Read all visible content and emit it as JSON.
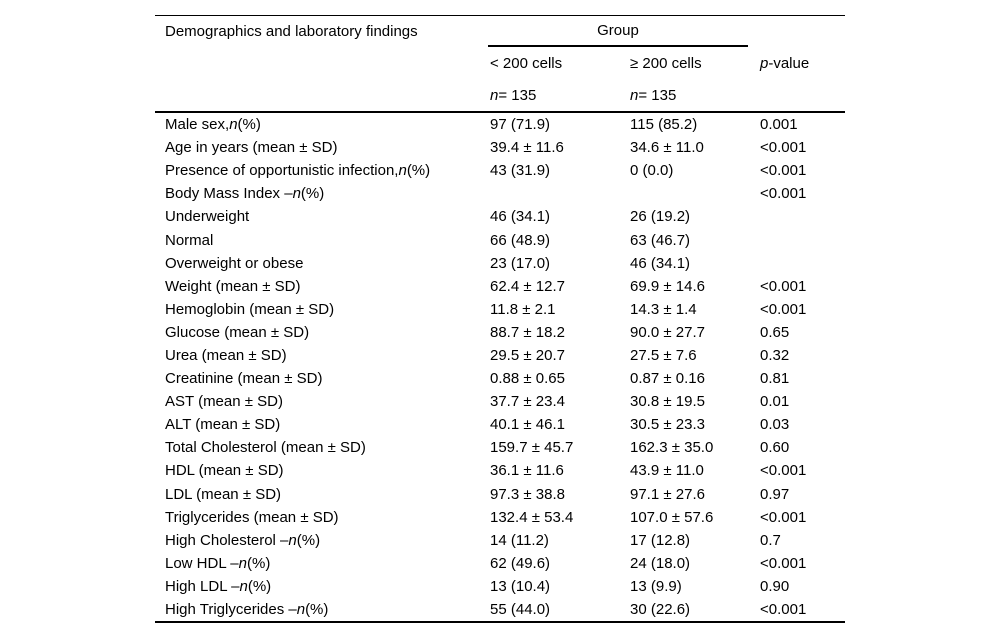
{
  "table": {
    "title_column": "Demographics and laboratory findings",
    "group_header": "Group",
    "columns": {
      "group1": {
        "label": "< 200 cells",
        "n": "*n* = 135"
      },
      "group2": {
        "label": "≥ 200 cells",
        "n": "*n* = 135"
      },
      "pvalue": {
        "label": "*p*-value"
      }
    },
    "rows": [
      {
        "label": "Male sex, *n* (%)",
        "group1": "97 (71.9)",
        "group2": "115 (85.2)",
        "p": "0.001"
      },
      {
        "label": "Age in years (mean ± SD)",
        "group1": "39.4 ± 11.6",
        "group2": "34.6 ± 11.0",
        "p": "<0.001"
      },
      {
        "label": "Presence of opportunistic infection, *n* (%)",
        "group1": "43 (31.9)",
        "group2": "0 (0.0)",
        "p": "<0.001"
      },
      {
        "label": "Body Mass Index – *n* (%)",
        "group1": "",
        "group2": "",
        "p": "<0.001"
      },
      {
        "label": "Underweight",
        "group1": "46 (34.1)",
        "group2": "26 (19.2)",
        "p": ""
      },
      {
        "label": "Normal",
        "group1": "66 (48.9)",
        "group2": "63 (46.7)",
        "p": ""
      },
      {
        "label": "Overweight or obese",
        "group1": "23 (17.0)",
        "group2": "46 (34.1)",
        "p": ""
      },
      {
        "label": "Weight (mean ± SD)",
        "group1": "62.4 ± 12.7",
        "group2": "69.9 ± 14.6",
        "p": "<0.001"
      },
      {
        "label": "Hemoglobin (mean ± SD)",
        "group1": "11.8 ± 2.1",
        "group2": "14.3 ± 1.4",
        "p": "<0.001"
      },
      {
        "label": "Glucose (mean ± SD)",
        "group1": "88.7 ± 18.2",
        "group2": "90.0 ± 27.7",
        "p": "0.65"
      },
      {
        "label": "Urea (mean ± SD)",
        "group1": "29.5 ± 20.7",
        "group2": "27.5 ± 7.6",
        "p": "0.32"
      },
      {
        "label": "Creatinine (mean ± SD)",
        "group1": "0.88 ± 0.65",
        "group2": "0.87 ± 0.16",
        "p": "0.81"
      },
      {
        "label": "AST (mean ± SD)",
        "group1": "37.7 ± 23.4",
        "group2": "30.8 ± 19.5",
        "p": "0.01"
      },
      {
        "label": "ALT (mean ± SD)",
        "group1": "40.1 ± 46.1",
        "group2": "30.5 ± 23.3",
        "p": "0.03"
      },
      {
        "label": "Total Cholesterol (mean ± SD)",
        "group1": "159.7 ± 45.7",
        "group2": "162.3 ± 35.0",
        "p": "0.60"
      },
      {
        "label": "HDL (mean ± SD)",
        "group1": "36.1 ± 11.6",
        "group2": "43.9 ± 11.0",
        "p": "<0.001"
      },
      {
        "label": "LDL (mean ± SD)",
        "group1": "97.3 ± 38.8",
        "group2": "97.1 ± 27.6",
        "p": "0.97"
      },
      {
        "label": "Triglycerides (mean ± SD)",
        "group1": "132.4 ± 53.4",
        "group2": "107.0 ± 57.6",
        "p": "<0.001"
      },
      {
        "label": "High Cholesterol – *n* (%)",
        "group1": "14 (11.2)",
        "group2": "17 (12.8)",
        "p": "0.7"
      },
      {
        "label": "Low HDL – *n* (%)",
        "group1": "62 (49.6)",
        "group2": "24 (18.0)",
        "p": "<0.001"
      },
      {
        "label": "High LDL – *n* (%)",
        "group1": "13 (10.4)",
        "group2": "13 (9.9)",
        "p": "0.90"
      },
      {
        "label": "High Triglycerides – *n* (%)",
        "group1": "55 (44.0)",
        "group2": "30 (22.6)",
        "p": "<0.001"
      }
    ]
  }
}
